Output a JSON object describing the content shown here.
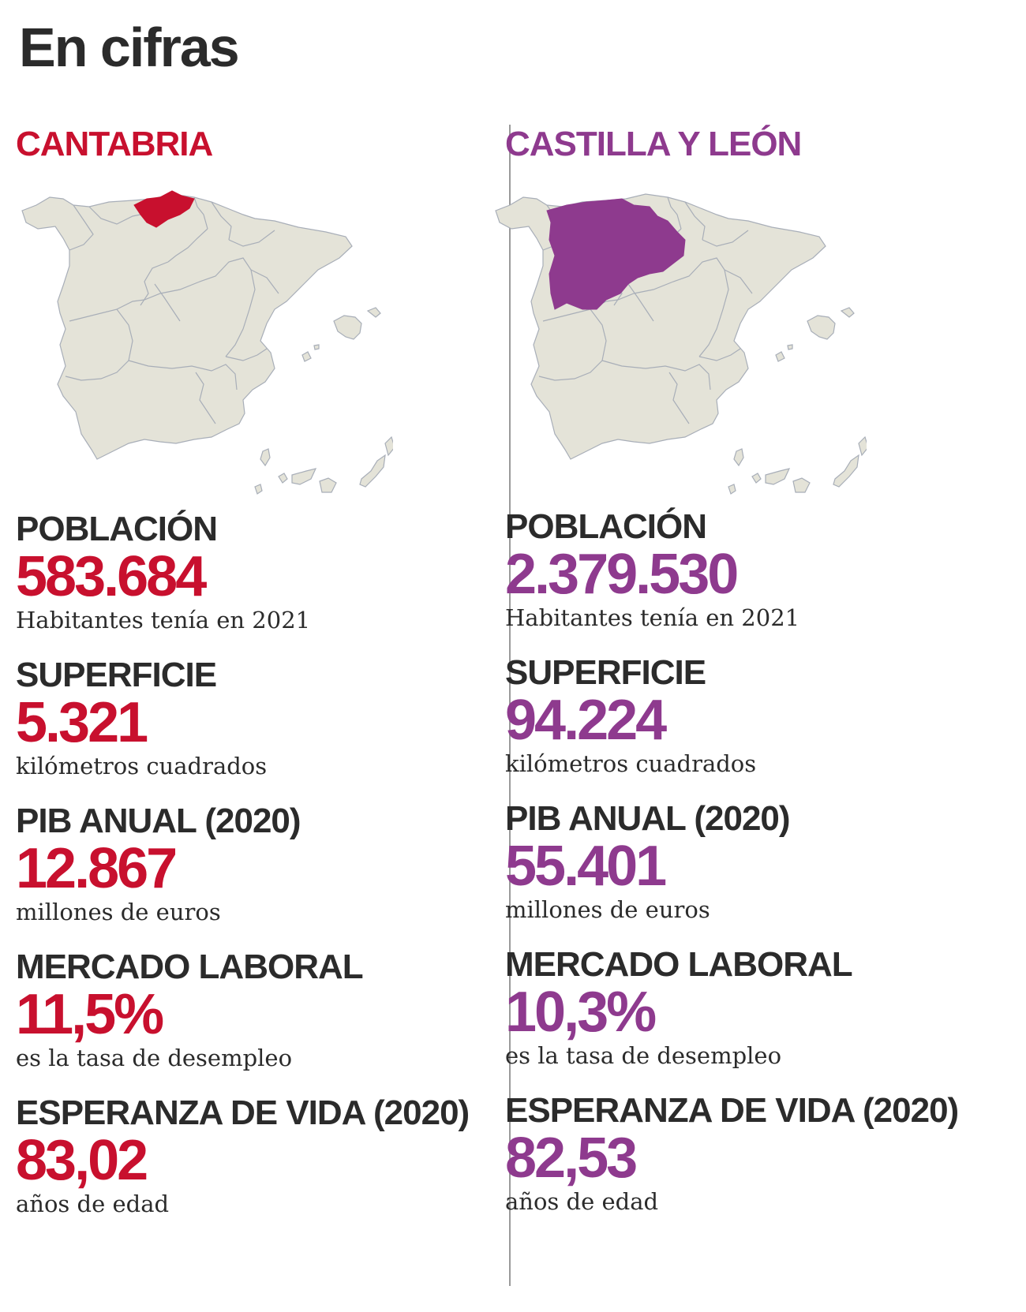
{
  "title": "En cifras",
  "colors": {
    "cantabria": "#c8102e",
    "castilla": "#8e3a8e",
    "map_fill": "#e4e3d8",
    "map_stroke": "#a8aeb8"
  },
  "regions": [
    {
      "name": "CANTABRIA",
      "highlight": "cantabria",
      "stats": [
        {
          "label": "POBLACIÓN",
          "value": "583.684",
          "desc": "Habitantes tenía en 2021"
        },
        {
          "label": "SUPERFICIE",
          "value": "5.321",
          "desc": "kilómetros cuadrados"
        },
        {
          "label": "PIB ANUAL (2020)",
          "value": "12.867",
          "desc": "millones de euros"
        },
        {
          "label": "MERCADO LABORAL",
          "value": "11,5%",
          "desc": "es la tasa de desempleo"
        },
        {
          "label": "ESPERANZA DE VIDA (2020)",
          "value": "83,02",
          "desc": "años de edad"
        }
      ]
    },
    {
      "name": "CASTILLA Y LEÓN",
      "highlight": "castilla",
      "stats": [
        {
          "label": "POBLACIÓN",
          "value": "2.379.530",
          "desc": "Habitantes tenía en 2021"
        },
        {
          "label": "SUPERFICIE",
          "value": "94.224",
          "desc": "kilómetros cuadrados"
        },
        {
          "label": "PIB ANUAL (2020)",
          "value": "55.401",
          "desc": "millones de euros"
        },
        {
          "label": "MERCADO LABORAL",
          "value": "10,3%",
          "desc": "es la tasa de desempleo"
        },
        {
          "label": "ESPERANZA DE VIDA (2020)",
          "value": "82,53",
          "desc": "años de edad"
        }
      ]
    }
  ]
}
